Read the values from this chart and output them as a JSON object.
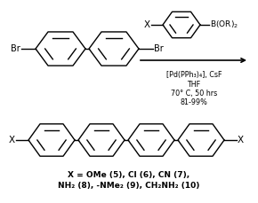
{
  "bg_color": "#ffffff",
  "line_color": "#000000",
  "reagent_line1": "[Pd(PPh₃)₄], CsF",
  "reagent_line2": "THF",
  "reagent_line3": "70° C, 50 hrs",
  "reagent_line4": "81-99%",
  "substituents_line1": "X = OMe (5), Cl (6), CN (7),",
  "substituents_line2": "NH₂ (8), -NMe₂ (9), CH₂NH₂ (10)"
}
